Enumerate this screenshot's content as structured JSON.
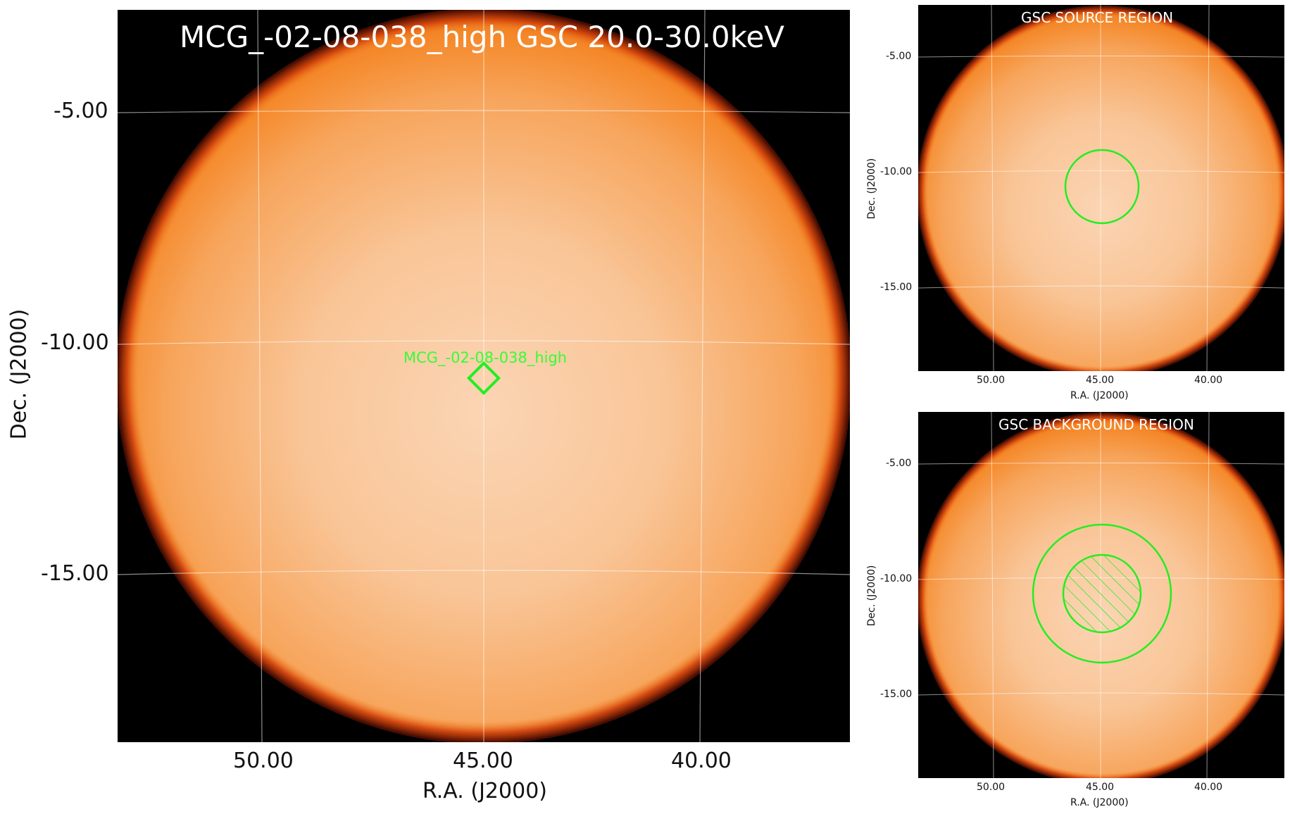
{
  "main": {
    "title": "MCG_-02-08-038_high GSC 20.0-30.0keV",
    "source_label": "MCG_-02-08-038_high",
    "xlabel": "R.A. (J2000)",
    "ylabel": "Dec. (J2000)",
    "xticks": [
      "50.00",
      "45.00",
      "40.00"
    ],
    "yticks": [
      "-5.00",
      "-10.00",
      "-15.00"
    ]
  },
  "source_panel": {
    "title": "GSC SOURCE REGION",
    "xlabel": "R.A. (J2000)",
    "ylabel": "Dec. (J2000)",
    "xticks": [
      "50.00",
      "45.00",
      "40.00"
    ],
    "yticks": [
      "-5.00",
      "-10.00",
      "-15.00"
    ]
  },
  "background_panel": {
    "title": "GSC BACKGROUND REGION",
    "xlabel": "R.A. (J2000)",
    "ylabel": "Dec. (J2000)",
    "xticks": [
      "50.00",
      "45.00",
      "40.00"
    ],
    "yticks": [
      "-5.00",
      "-10.00",
      "-15.00"
    ]
  },
  "colors": {
    "disk_center": "#fbd3b0",
    "disk_edge": "#f58a2c",
    "limb": "#8b1a00",
    "region": "#22ee22",
    "grid": "#ffffff"
  }
}
